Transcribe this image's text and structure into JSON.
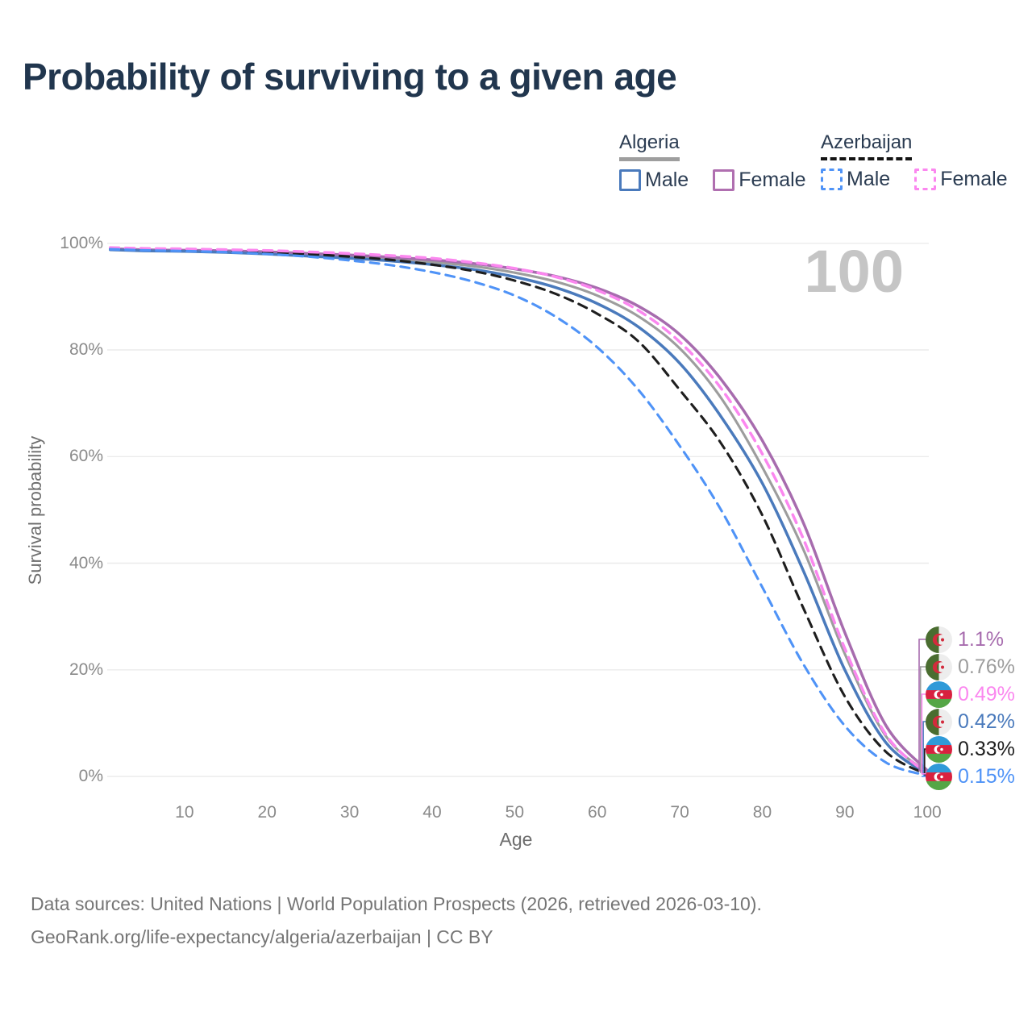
{
  "title": "Probability of surviving to a given age",
  "watermark": "100",
  "legend": {
    "groups": [
      {
        "country": "Algeria",
        "line_style": "solid",
        "underline_color": "#9e9e9e",
        "items": [
          {
            "label": "Male",
            "color": "#4a7abc"
          },
          {
            "label": "Female",
            "color": "#b06fb0"
          }
        ]
      },
      {
        "country": "Azerbaijan",
        "line_style": "dashed",
        "underline_color": "#141414",
        "items": [
          {
            "label": "Male",
            "color": "#4f93f7"
          },
          {
            "label": "Female",
            "color": "#fb87ef"
          }
        ]
      }
    ]
  },
  "chart_data": {
    "type": "line",
    "title": "Probability of surviving to a given age",
    "xlabel": "Age",
    "ylabel": "Survival probability",
    "xlim": [
      0,
      100
    ],
    "ylim": [
      0,
      100
    ],
    "grid": "horizontal",
    "legend_position": "top-right",
    "xticks": [
      10,
      20,
      30,
      40,
      50,
      60,
      70,
      80,
      90,
      100
    ],
    "yticks": [
      {
        "v": 100,
        "label": "100%"
      },
      {
        "v": 80,
        "label": "80%"
      },
      {
        "v": 60,
        "label": "60%"
      },
      {
        "v": 40,
        "label": "40%"
      },
      {
        "v": 20,
        "label": "20%"
      },
      {
        "v": 0,
        "label": "0%"
      }
    ],
    "x_ages": [
      1,
      5,
      10,
      15,
      20,
      25,
      30,
      35,
      40,
      45,
      50,
      55,
      60,
      65,
      70,
      75,
      80,
      85,
      90,
      95,
      100
    ],
    "series": [
      {
        "name": "Algeria (both sexes)",
        "country": "Algeria",
        "sex": "both",
        "color": "#9d9d9d",
        "dash": "solid",
        "width": 3.1,
        "label_index": 1,
        "values": [
          98.9,
          98.7,
          98.6,
          98.45,
          98.2,
          97.9,
          97.55,
          97.1,
          96.5,
          95.7,
          94.5,
          92.8,
          90.2,
          86.3,
          80.3,
          71.0,
          58.0,
          42.5,
          23.0,
          7.5,
          0.76
        ]
      },
      {
        "name": "Algeria Female",
        "country": "Algeria",
        "sex": "Female",
        "color": "#a76cae",
        "dash": "solid",
        "width": 3.5,
        "label_index": 0,
        "values": [
          99.0,
          98.8,
          98.7,
          98.6,
          98.4,
          98.1,
          97.8,
          97.4,
          96.9,
          96.2,
          95.2,
          93.8,
          91.6,
          88.2,
          82.9,
          74.5,
          63.0,
          47.5,
          27.0,
          9.5,
          1.1
        ]
      },
      {
        "name": "Algeria Male",
        "country": "Algeria",
        "sex": "Male",
        "color": "#4a7abc",
        "dash": "solid",
        "width": 3.5,
        "label_index": 3,
        "values": [
          98.8,
          98.6,
          98.5,
          98.3,
          98.0,
          97.6,
          97.2,
          96.7,
          96.0,
          95.1,
          93.7,
          91.7,
          88.7,
          84.3,
          77.5,
          67.5,
          55.0,
          38.5,
          20.0,
          6.3,
          0.42
        ]
      },
      {
        "name": "Azerbaijan (both sexes)",
        "country": "Azerbaijan",
        "sex": "both",
        "color": "#1e1e1e",
        "dash": "dashed",
        "width": 3.1,
        "label_index": 4,
        "values": [
          99.0,
          98.85,
          98.75,
          98.6,
          98.35,
          98.0,
          97.5,
          96.9,
          96.0,
          94.8,
          93.0,
          90.5,
          86.8,
          81.6,
          72.5,
          62.5,
          49.0,
          31.5,
          15.0,
          4.6,
          0.33
        ]
      },
      {
        "name": "Azerbaijan Female",
        "country": "Azerbaijan",
        "sex": "Female",
        "color": "#fb87ef",
        "dash": "dashed",
        "width": 3.5,
        "label_index": 2,
        "values": [
          99.2,
          99.05,
          98.95,
          98.8,
          98.65,
          98.4,
          98.1,
          97.7,
          97.2,
          96.4,
          95.3,
          93.7,
          91.2,
          87.4,
          81.5,
          72.8,
          60.5,
          44.5,
          24.0,
          7.8,
          0.49
        ]
      },
      {
        "name": "Azerbaijan Male",
        "country": "Azerbaijan",
        "sex": "Male",
        "color": "#4f93f7",
        "dash": "dashed",
        "width": 3.1,
        "label_index": 5,
        "values": [
          98.9,
          98.7,
          98.55,
          98.35,
          98.0,
          97.5,
          96.8,
          95.9,
          94.6,
          92.8,
          90.2,
          86.2,
          80.5,
          72.5,
          62.0,
          50.0,
          35.5,
          21.0,
          9.5,
          2.6,
          0.15
        ]
      }
    ],
    "end_labels": [
      {
        "text": "1.1%",
        "color": "#a76cae",
        "flag": "dz"
      },
      {
        "text": "0.76%",
        "color": "#9d9d9d",
        "flag": "dz"
      },
      {
        "text": "0.49%",
        "color": "#fb87ef",
        "flag": "az"
      },
      {
        "text": "0.42%",
        "color": "#4a7abc",
        "flag": "dz"
      },
      {
        "text": "0.33%",
        "color": "#1e1e1e",
        "flag": "az"
      },
      {
        "text": "0.15%",
        "color": "#4f93f7",
        "flag": "az"
      }
    ],
    "flags": {
      "dz": {
        "green": "#4a6d30",
        "white": "#ededed",
        "red": "#d32a3c"
      },
      "az": {
        "blue": "#2f9ad8",
        "red": "#d8213f",
        "green": "#55a646",
        "white": "#ffffff"
      }
    }
  },
  "footer": {
    "line1": "Data sources: United Nations | World Population Prospects (2026, retrieved 2026-03-10).",
    "line2": "GeoRank.org/life-expectancy/algeria/azerbaijan | CC BY"
  }
}
